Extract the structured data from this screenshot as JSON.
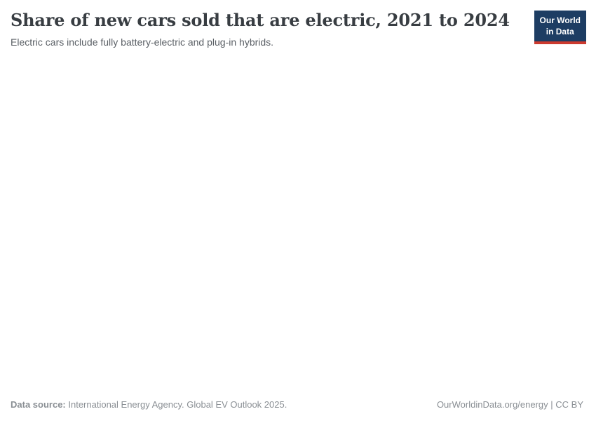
{
  "header": {
    "title": "Share of new cars sold that are electric, 2021 to 2024",
    "subtitle": "Electric cars include fully battery-electric and plug-in hybrids.",
    "logo": {
      "line1": "Our World",
      "line2": "in Data"
    }
  },
  "chart_data": {
    "type": "line",
    "title": "Share of new cars sold that are electric, 2021 to 2024",
    "subtitle": "Electric cars include fully battery-electric and plug-in hybrids.",
    "x_range": [
      2021,
      2024
    ],
    "series": [],
    "note": "Plot area is blank in the screenshot; no axes, gridlines, or data points are rendered."
  },
  "footer": {
    "data_source_label": "Data source:",
    "data_source_text": " International Energy Agency. Global EV Outlook 2025.",
    "attribution": "OurWorldinData.org/energy | CC BY"
  },
  "colors": {
    "title_text": "#383d42",
    "subtitle_text": "#5b6066",
    "footer_text": "#8a8f94",
    "logo_background": "#1d3d63",
    "logo_accent_red": "#cc3a2f",
    "page_background": "#ffffff"
  }
}
